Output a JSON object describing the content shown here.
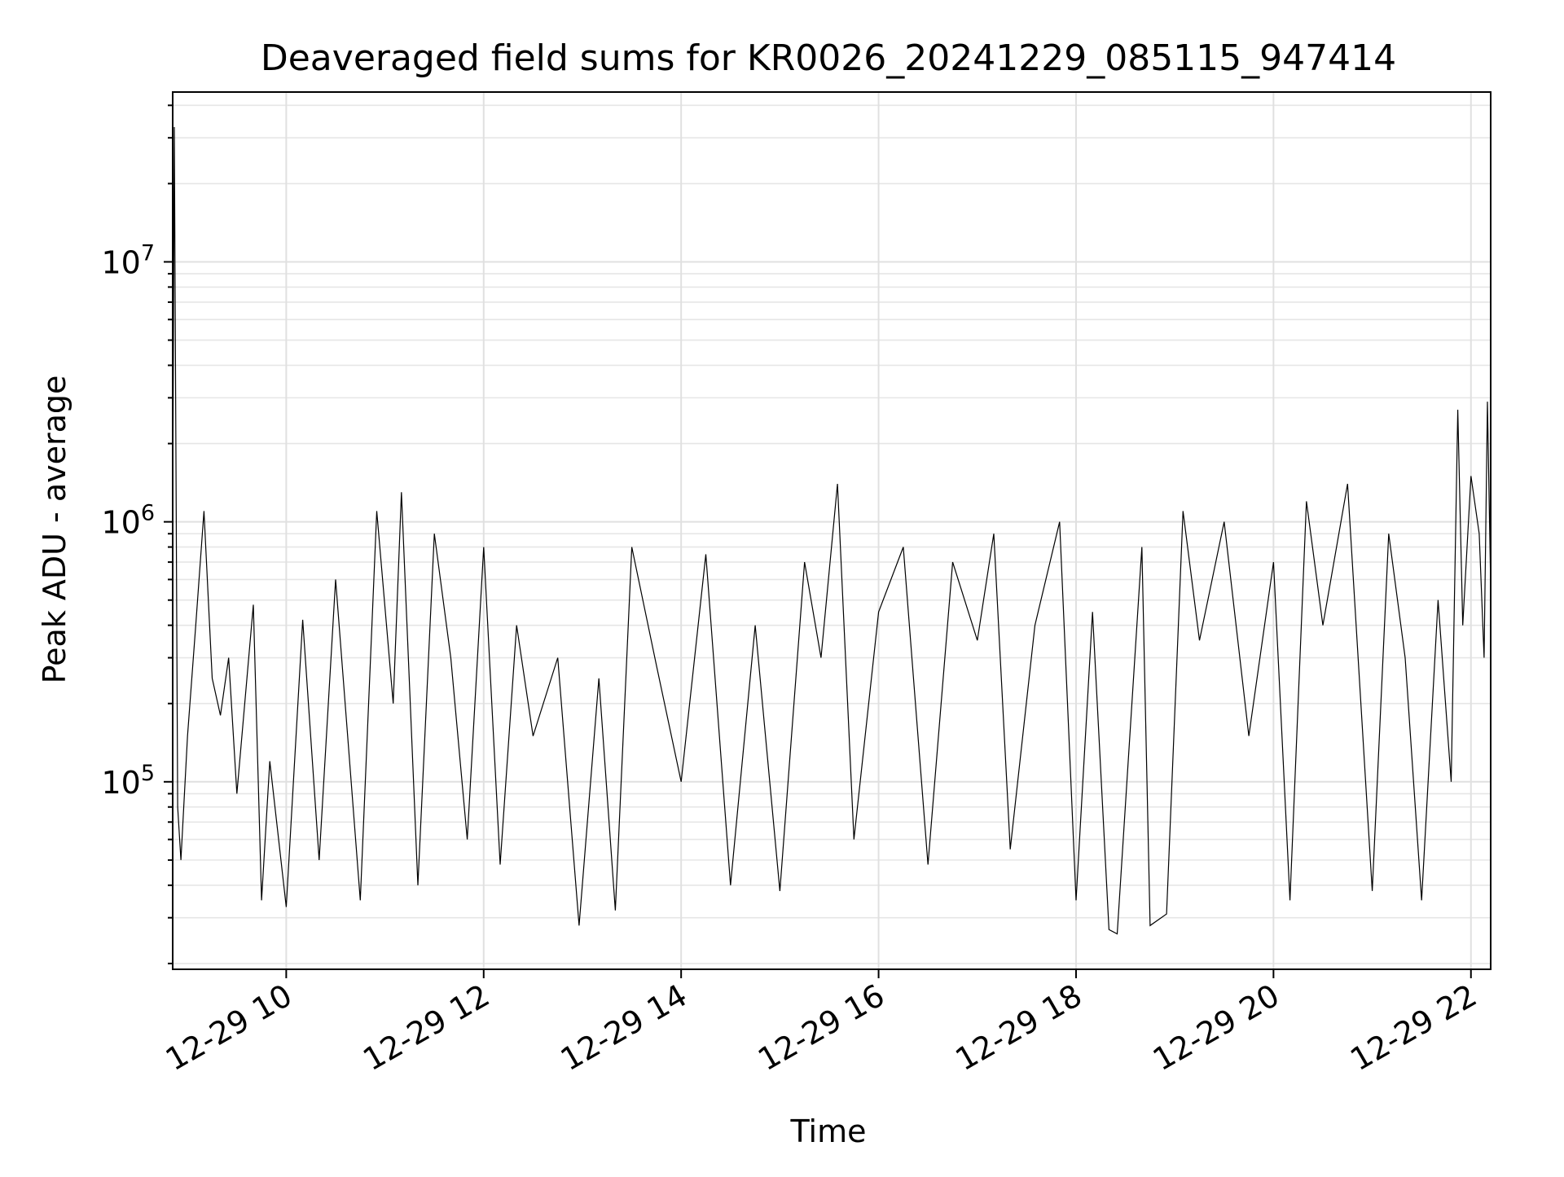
{
  "chart_data": {
    "type": "line",
    "title": "Deaveraged field sums for KR0026_20241229_085115_947414",
    "xlabel": "Time",
    "ylabel": "Peak ADU - average",
    "y_scale": "log",
    "grid": true,
    "legend": "none",
    "colors": {
      "line": "#000000",
      "grid": "#e0e0e0",
      "background": "#ffffff"
    },
    "xlim": [
      "2024-12-29 08:51",
      "2024-12-29 22:12"
    ],
    "ylim": [
      19000,
      45000000
    ],
    "x_ticks": [
      {
        "value": "2024-12-29 10:00",
        "label": "12-29 10"
      },
      {
        "value": "2024-12-29 12:00",
        "label": "12-29 12"
      },
      {
        "value": "2024-12-29 14:00",
        "label": "12-29 14"
      },
      {
        "value": "2024-12-29 16:00",
        "label": "12-29 16"
      },
      {
        "value": "2024-12-29 18:00",
        "label": "12-29 18"
      },
      {
        "value": "2024-12-29 20:00",
        "label": "12-29 20"
      },
      {
        "value": "2024-12-29 22:00",
        "label": "12-29 22"
      }
    ],
    "y_ticks": [
      {
        "value": 100000,
        "base": "10",
        "exp": "5"
      },
      {
        "value": 1000000,
        "base": "10",
        "exp": "6"
      },
      {
        "value": 10000000,
        "base": "10",
        "exp": "7"
      }
    ],
    "series": [
      {
        "x": [
          "2024-12-29 08:51",
          "2024-12-29 08:52",
          "2024-12-29 08:54",
          "2024-12-29 08:56",
          "2024-12-29 09:00",
          "2024-12-29 09:05",
          "2024-12-29 09:10",
          "2024-12-29 09:15",
          "2024-12-29 09:20",
          "2024-12-29 09:25",
          "2024-12-29 09:30",
          "2024-12-29 09:40",
          "2024-12-29 09:45",
          "2024-12-29 09:50",
          "2024-12-29 10:00",
          "2024-12-29 10:10",
          "2024-12-29 10:20",
          "2024-12-29 10:30",
          "2024-12-29 10:45",
          "2024-12-29 10:55",
          "2024-12-29 11:05",
          "2024-12-29 11:10",
          "2024-12-29 11:20",
          "2024-12-29 11:30",
          "2024-12-29 11:40",
          "2024-12-29 11:50",
          "2024-12-29 12:00",
          "2024-12-29 12:10",
          "2024-12-29 12:20",
          "2024-12-29 12:30",
          "2024-12-29 12:45",
          "2024-12-29 12:58",
          "2024-12-29 13:10",
          "2024-12-29 13:20",
          "2024-12-29 13:30",
          "2024-12-29 13:45",
          "2024-12-29 14:00",
          "2024-12-29 14:15",
          "2024-12-29 14:30",
          "2024-12-29 14:45",
          "2024-12-29 15:00",
          "2024-12-29 15:15",
          "2024-12-29 15:25",
          "2024-12-29 15:35",
          "2024-12-29 15:45",
          "2024-12-29 16:00",
          "2024-12-29 16:15",
          "2024-12-29 16:30",
          "2024-12-29 16:45",
          "2024-12-29 17:00",
          "2024-12-29 17:10",
          "2024-12-29 17:20",
          "2024-12-29 17:35",
          "2024-12-29 17:50",
          "2024-12-29 18:00",
          "2024-12-29 18:10",
          "2024-12-29 18:20",
          "2024-12-29 18:25",
          "2024-12-29 18:40",
          "2024-12-29 18:45",
          "2024-12-29 18:55",
          "2024-12-29 19:05",
          "2024-12-29 19:15",
          "2024-12-29 19:30",
          "2024-12-29 19:45",
          "2024-12-29 20:00",
          "2024-12-29 20:10",
          "2024-12-29 20:20",
          "2024-12-29 20:30",
          "2024-12-29 20:45",
          "2024-12-29 21:00",
          "2024-12-29 21:10",
          "2024-12-29 21:20",
          "2024-12-29 21:30",
          "2024-12-29 21:40",
          "2024-12-29 21:48",
          "2024-12-29 21:52",
          "2024-12-29 21:55",
          "2024-12-29 22:00",
          "2024-12-29 22:05",
          "2024-12-29 22:08",
          "2024-12-29 22:10",
          "2024-12-29 22:12"
        ],
        "y": [
          1000000,
          33000000,
          80000,
          50000,
          150000,
          400000,
          1100000,
          250000,
          180000,
          300000,
          90000,
          480000,
          35000,
          120000,
          33000,
          420000,
          50000,
          600000,
          35000,
          1100000,
          200000,
          1300000,
          40000,
          900000,
          300000,
          60000,
          800000,
          48000,
          400000,
          150000,
          300000,
          28000,
          250000,
          32000,
          800000,
          280000,
          100000,
          750000,
          40000,
          400000,
          38000,
          700000,
          300000,
          1400000,
          60000,
          450000,
          800000,
          48000,
          700000,
          350000,
          900000,
          55000,
          400000,
          1000000,
          35000,
          450000,
          27000,
          26000,
          800000,
          28000,
          31000,
          1100000,
          350000,
          1000000,
          150000,
          700000,
          35000,
          1200000,
          400000,
          1400000,
          38000,
          900000,
          300000,
          35000,
          500000,
          100000,
          2700000,
          400000,
          1500000,
          900000,
          300000,
          2900000,
          560000
        ]
      }
    ]
  }
}
